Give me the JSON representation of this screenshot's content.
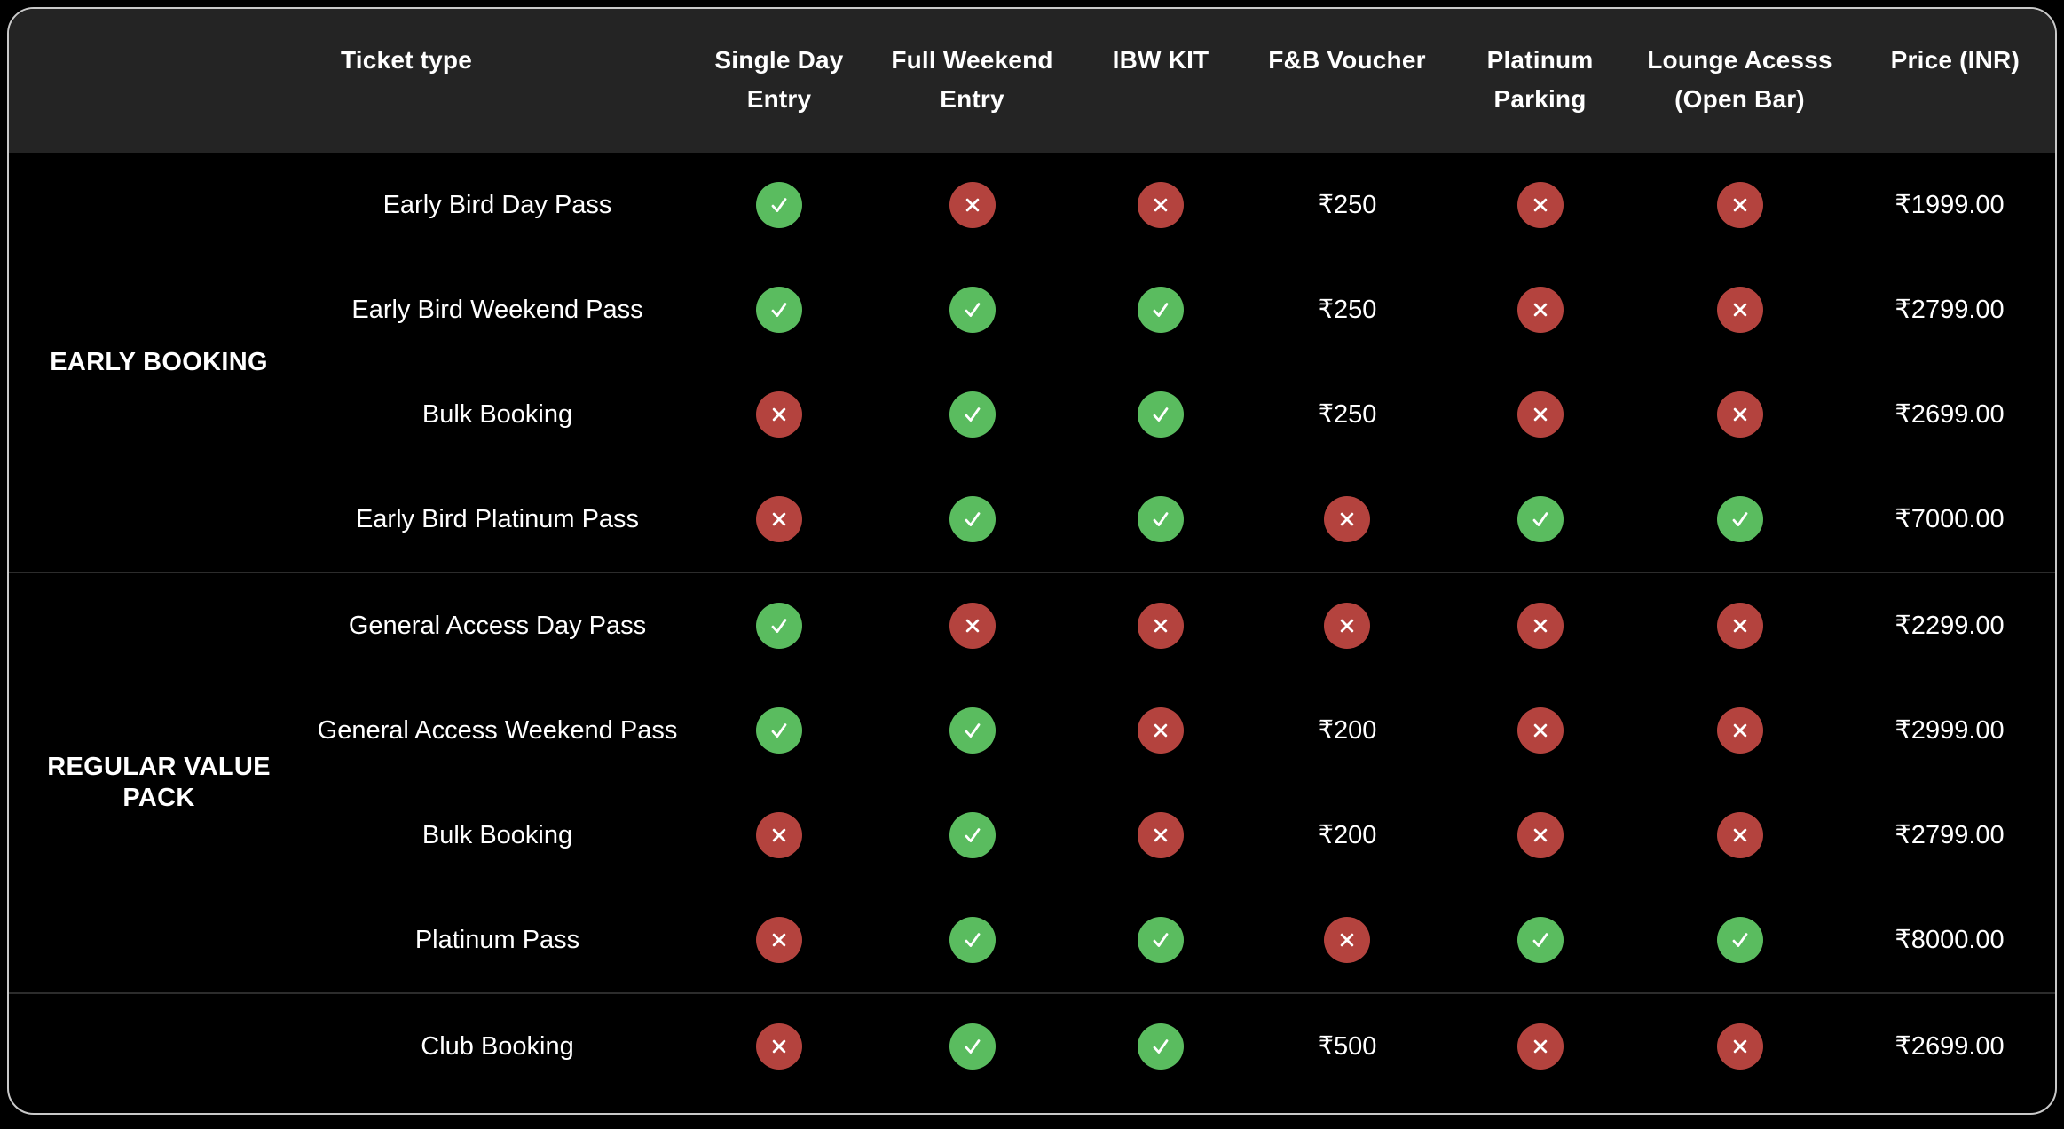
{
  "colors": {
    "page_bg": "#000000",
    "card_border": "#c9c9c9",
    "header_bg": "#242424",
    "divider": "#2c2c2c",
    "text": "#ffffff",
    "check_bg": "#5abc5f",
    "cross_bg": "#b4433e"
  },
  "table": {
    "columns": [
      {
        "id": "ticket_type",
        "label": "Ticket type",
        "align": "left"
      },
      {
        "id": "single_day_entry",
        "label": "Single Day Entry",
        "align": "center"
      },
      {
        "id": "full_weekend_entry",
        "label": "Full Weekend Entry",
        "align": "center"
      },
      {
        "id": "ibw_kit",
        "label": "IBW KIT",
        "align": "center"
      },
      {
        "id": "fb_voucher",
        "label": "F&B Voucher",
        "align": "center"
      },
      {
        "id": "platinum_parking",
        "label": "Platinum Parking",
        "align": "center"
      },
      {
        "id": "lounge_access",
        "label": "Lounge Acesss (Open Bar)",
        "align": "center"
      },
      {
        "id": "price_inr",
        "label": "Price (INR)",
        "align": "right"
      }
    ],
    "sections": [
      {
        "label": "EARLY BOOKING",
        "rows": [
          {
            "name": "Early Bird Day Pass",
            "features": [
              "yes",
              "no",
              "no",
              "₹250",
              "no",
              "no"
            ],
            "price": "₹1999.00"
          },
          {
            "name": "Early Bird Weekend Pass",
            "features": [
              "yes",
              "yes",
              "yes",
              "₹250",
              "no",
              "no"
            ],
            "price": "₹2799.00"
          },
          {
            "name": "Bulk Booking",
            "features": [
              "no",
              "yes",
              "yes",
              "₹250",
              "no",
              "no"
            ],
            "price": "₹2699.00"
          },
          {
            "name": "Early Bird Platinum Pass",
            "features": [
              "no",
              "yes",
              "yes",
              "no",
              "yes",
              "yes"
            ],
            "price": "₹7000.00"
          }
        ]
      },
      {
        "label": "REGULAR VALUE PACK",
        "rows": [
          {
            "name": "General Access Day Pass",
            "features": [
              "yes",
              "no",
              "no",
              "no",
              "no",
              "no"
            ],
            "price": "₹2299.00"
          },
          {
            "name": "General Access Weekend Pass",
            "features": [
              "yes",
              "yes",
              "no",
              "₹200",
              "no",
              "no"
            ],
            "price": "₹2999.00"
          },
          {
            "name": "Bulk Booking",
            "features": [
              "no",
              "yes",
              "no",
              "₹200",
              "no",
              "no"
            ],
            "price": "₹2799.00"
          },
          {
            "name": "Platinum Pass",
            "features": [
              "no",
              "yes",
              "yes",
              "no",
              "yes",
              "yes"
            ],
            "price": "₹8000.00"
          }
        ]
      },
      {
        "label": "",
        "rows": [
          {
            "name": "Club Booking",
            "features": [
              "no",
              "yes",
              "yes",
              "₹500",
              "no",
              "no"
            ],
            "price": "₹2699.00"
          }
        ]
      }
    ]
  }
}
